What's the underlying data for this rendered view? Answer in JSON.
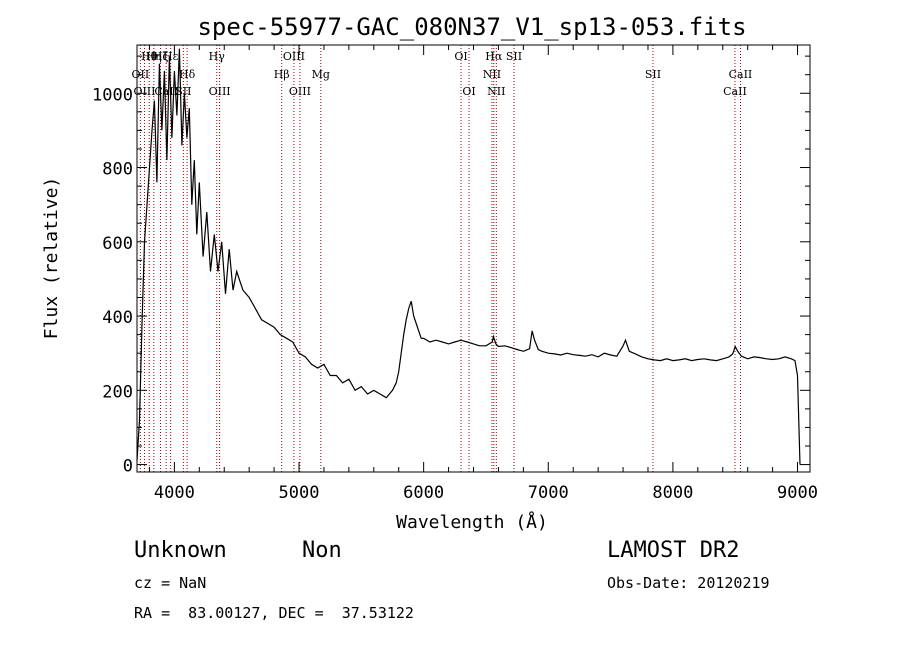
{
  "chart_data": {
    "type": "line",
    "title": "spec-55977-GAC_080N37_V1_sp13-053.fits",
    "xlabel": "Wavelength (Å)",
    "ylabel": "Flux (relative)",
    "xlim": [
      3700,
      9100
    ],
    "ylim": [
      -20,
      1130
    ],
    "x_ticks": [
      4000,
      5000,
      6000,
      7000,
      8000,
      9000
    ],
    "y_ticks": [
      0,
      200,
      400,
      600,
      800,
      1000
    ],
    "grid": false,
    "line_color": "#000000",
    "marker_color": "#990000",
    "series": [
      {
        "x": [
          3700,
          3720,
          3740,
          3760,
          3780,
          3800,
          3820,
          3840,
          3860,
          3880,
          3900,
          3920,
          3940,
          3960,
          3980,
          4000,
          4020,
          4040,
          4060,
          4080,
          4100,
          4120,
          4140,
          4160,
          4180,
          4200,
          4230,
          4260,
          4290,
          4320,
          4350,
          4380,
          4410,
          4440,
          4470,
          4500,
          4550,
          4600,
          4650,
          4700,
          4750,
          4800,
          4850,
          4900,
          4950,
          5000,
          5050,
          5100,
          5150,
          5200,
          5250,
          5300,
          5350,
          5400,
          5450,
          5500,
          5550,
          5600,
          5650,
          5700,
          5750,
          5780,
          5800,
          5820,
          5840,
          5860,
          5880,
          5900,
          5920,
          5940,
          5960,
          5980,
          6000,
          6050,
          6100,
          6150,
          6200,
          6250,
          6300,
          6350,
          6400,
          6450,
          6500,
          6550,
          6560,
          6580,
          6600,
          6650,
          6700,
          6750,
          6800,
          6850,
          6870,
          6890,
          6920,
          6950,
          7000,
          7050,
          7100,
          7150,
          7200,
          7250,
          7300,
          7350,
          7400,
          7450,
          7500,
          7550,
          7600,
          7620,
          7650,
          7700,
          7750,
          7800,
          7850,
          7900,
          7950,
          8000,
          8050,
          8100,
          8150,
          8200,
          8250,
          8300,
          8350,
          8400,
          8450,
          8480,
          8500,
          8520,
          8550,
          8600,
          8650,
          8700,
          8750,
          8800,
          8850,
          8900,
          8950,
          8980,
          9000,
          9020
        ],
        "y": [
          10,
          120,
          380,
          600,
          700,
          800,
          900,
          980,
          760,
          1080,
          900,
          1060,
          820,
          1100,
          880,
          1060,
          940,
          1120,
          860,
          1000,
          880,
          960,
          700,
          820,
          620,
          760,
          560,
          680,
          520,
          620,
          520,
          600,
          460,
          580,
          470,
          520,
          470,
          450,
          420,
          390,
          380,
          370,
          350,
          340,
          330,
          300,
          290,
          270,
          260,
          270,
          240,
          240,
          220,
          230,
          200,
          210,
          190,
          200,
          190,
          180,
          200,
          220,
          250,
          300,
          350,
          390,
          420,
          440,
          400,
          380,
          360,
          340,
          340,
          330,
          335,
          330,
          325,
          330,
          335,
          330,
          325,
          320,
          320,
          330,
          345,
          325,
          318,
          320,
          315,
          310,
          305,
          312,
          360,
          335,
          310,
          305,
          300,
          298,
          295,
          300,
          296,
          294,
          292,
          296,
          290,
          300,
          295,
          292,
          320,
          335,
          305,
          298,
          290,
          285,
          282,
          280,
          285,
          280,
          282,
          285,
          280,
          283,
          285,
          282,
          280,
          285,
          290,
          298,
          318,
          305,
          292,
          285,
          290,
          288,
          285,
          283,
          285,
          290,
          285,
          280,
          240,
          0
        ]
      }
    ],
    "lines": [
      {
        "label": "OII",
        "x": 3727,
        "row": 2
      },
      {
        "label": "Hθ",
        "x": 3798,
        "row": 1
      },
      {
        "label": "OIII",
        "x": 3760,
        "row": 3
      },
      {
        "label": "Hη",
        "x": 3835,
        "row": 1
      },
      {
        "label": "Hζ",
        "x": 3889,
        "row": 1
      },
      {
        "label": "CaII",
        "x": 3934,
        "row": 3
      },
      {
        "label": "Hε",
        "x": 3970,
        "row": 1
      },
      {
        "label": "Hδ",
        "x": 4102,
        "row": 2
      },
      {
        "label": "SII",
        "x": 4072,
        "row": 3
      },
      {
        "label": "Hγ",
        "x": 4340,
        "row": 1
      },
      {
        "label": "OIII",
        "x": 4363,
        "row": 3
      },
      {
        "label": "Hβ",
        "x": 4861,
        "row": 2
      },
      {
        "label": "OIII",
        "x": 4959,
        "row": 1
      },
      {
        "label": "OIII",
        "x": 5007,
        "row": 3
      },
      {
        "label": "Mg",
        "x": 5175,
        "row": 2
      },
      {
        "label": "OI",
        "x": 6300,
        "row": 1
      },
      {
        "label": "OI",
        "x": 6364,
        "row": 3
      },
      {
        "label": "NII",
        "x": 6548,
        "row": 2
      },
      {
        "label": "Hα",
        "x": 6563,
        "row": 1
      },
      {
        "label": "NII",
        "x": 6583,
        "row": 3
      },
      {
        "label": "SII",
        "x": 6725,
        "row": 1
      },
      {
        "label": "SII",
        "x": 7840,
        "row": 2
      },
      {
        "label": "CaII",
        "x": 8498,
        "row": 3
      },
      {
        "label": "CaII",
        "x": 8542,
        "row": 2
      }
    ]
  },
  "footer": {
    "class_label": "Unknown",
    "subclass_label": "Non",
    "survey": "LAMOST DR2",
    "redshift": "cz = NaN",
    "obs_date": "Obs-Date: 20120219",
    "coords": "RA =  83.00127, DEC =  37.53122"
  }
}
